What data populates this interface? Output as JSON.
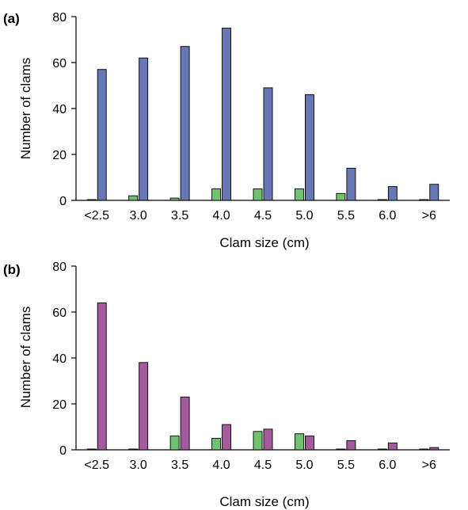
{
  "chart_data": [
    {
      "type": "bar",
      "panel_label": "(a)",
      "categories": [
        "<2.5",
        "3.0",
        "3.5",
        "4.0",
        "4.5",
        "5.0",
        "5.5",
        "6.0",
        ">6"
      ],
      "series": [
        {
          "values": [
            0,
            2,
            1,
            5,
            5,
            5,
            3,
            0,
            0
          ],
          "color": "#70c271"
        },
        {
          "values": [
            57,
            62,
            67,
            75,
            49,
            46,
            14,
            6,
            7
          ],
          "color": "#6777b4"
        }
      ],
      "xlabel": "Clam size (cm)",
      "ylabel": "Number of clams",
      "ylim": [
        0,
        80
      ],
      "yticks": [
        0,
        20,
        40,
        60,
        80
      ],
      "grid": false,
      "legend": "none"
    },
    {
      "type": "bar",
      "panel_label": "(b)",
      "categories": [
        "<2.5",
        "3.0",
        "3.5",
        "4.0",
        "4.5",
        "5.0",
        "5.5",
        "6.0",
        ">6"
      ],
      "series": [
        {
          "values": [
            0,
            0,
            6,
            5,
            8,
            7,
            0,
            0,
            0
          ],
          "color": "#70c271"
        },
        {
          "values": [
            64,
            38,
            23,
            11,
            9,
            6,
            4,
            3,
            1
          ],
          "color": "#a45b9e"
        }
      ],
      "xlabel": "Clam size (cm)",
      "ylabel": "Number of clams",
      "ylim": [
        0,
        80
      ],
      "yticks": [
        0,
        20,
        40,
        60,
        80
      ],
      "grid": false,
      "legend": "none"
    }
  ]
}
